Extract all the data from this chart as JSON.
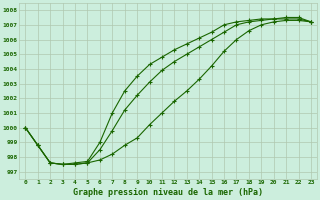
{
  "x": [
    0,
    1,
    2,
    3,
    4,
    5,
    6,
    7,
    8,
    9,
    10,
    11,
    12,
    13,
    14,
    15,
    16,
    17,
    18,
    19,
    20,
    21,
    22,
    23
  ],
  "line1": [
    1000.0,
    998.8,
    997.6,
    997.5,
    997.5,
    997.6,
    997.8,
    998.2,
    998.8,
    999.3,
    1000.2,
    1001.0,
    1001.8,
    1002.5,
    1003.3,
    1004.2,
    1005.2,
    1006.0,
    1006.6,
    1007.0,
    1007.2,
    1007.3,
    1007.3,
    1007.2
  ],
  "line2": [
    1000.0,
    998.8,
    997.6,
    997.5,
    997.5,
    997.6,
    998.5,
    999.8,
    1001.2,
    1002.2,
    1003.1,
    1003.9,
    1004.5,
    1005.0,
    1005.5,
    1006.0,
    1006.5,
    1007.0,
    1007.2,
    1007.3,
    1007.4,
    1007.4,
    1007.4,
    1007.2
  ],
  "line3": [
    1000.0,
    998.8,
    997.6,
    997.5,
    997.6,
    997.7,
    999.0,
    1001.0,
    1002.5,
    1003.5,
    1004.3,
    1004.8,
    1005.3,
    1005.7,
    1006.1,
    1006.5,
    1007.0,
    1007.2,
    1007.3,
    1007.4,
    1007.4,
    1007.5,
    1007.5,
    1007.2
  ],
  "line_color": "#1a6600",
  "marker": "+",
  "bg_color": "#cceedd",
  "grid_color": "#b0c8b0",
  "text_color": "#1a6600",
  "xlabel": "Graphe pression niveau de la mer (hPa)",
  "ylim": [
    996.5,
    1008.5
  ],
  "xlim": [
    -0.5,
    23.5
  ],
  "yticks": [
    997,
    998,
    999,
    1000,
    1001,
    1002,
    1003,
    1004,
    1005,
    1006,
    1007,
    1008
  ],
  "xticks": [
    0,
    1,
    2,
    3,
    4,
    5,
    6,
    7,
    8,
    9,
    10,
    11,
    12,
    13,
    14,
    15,
    16,
    17,
    18,
    19,
    20,
    21,
    22,
    23
  ]
}
